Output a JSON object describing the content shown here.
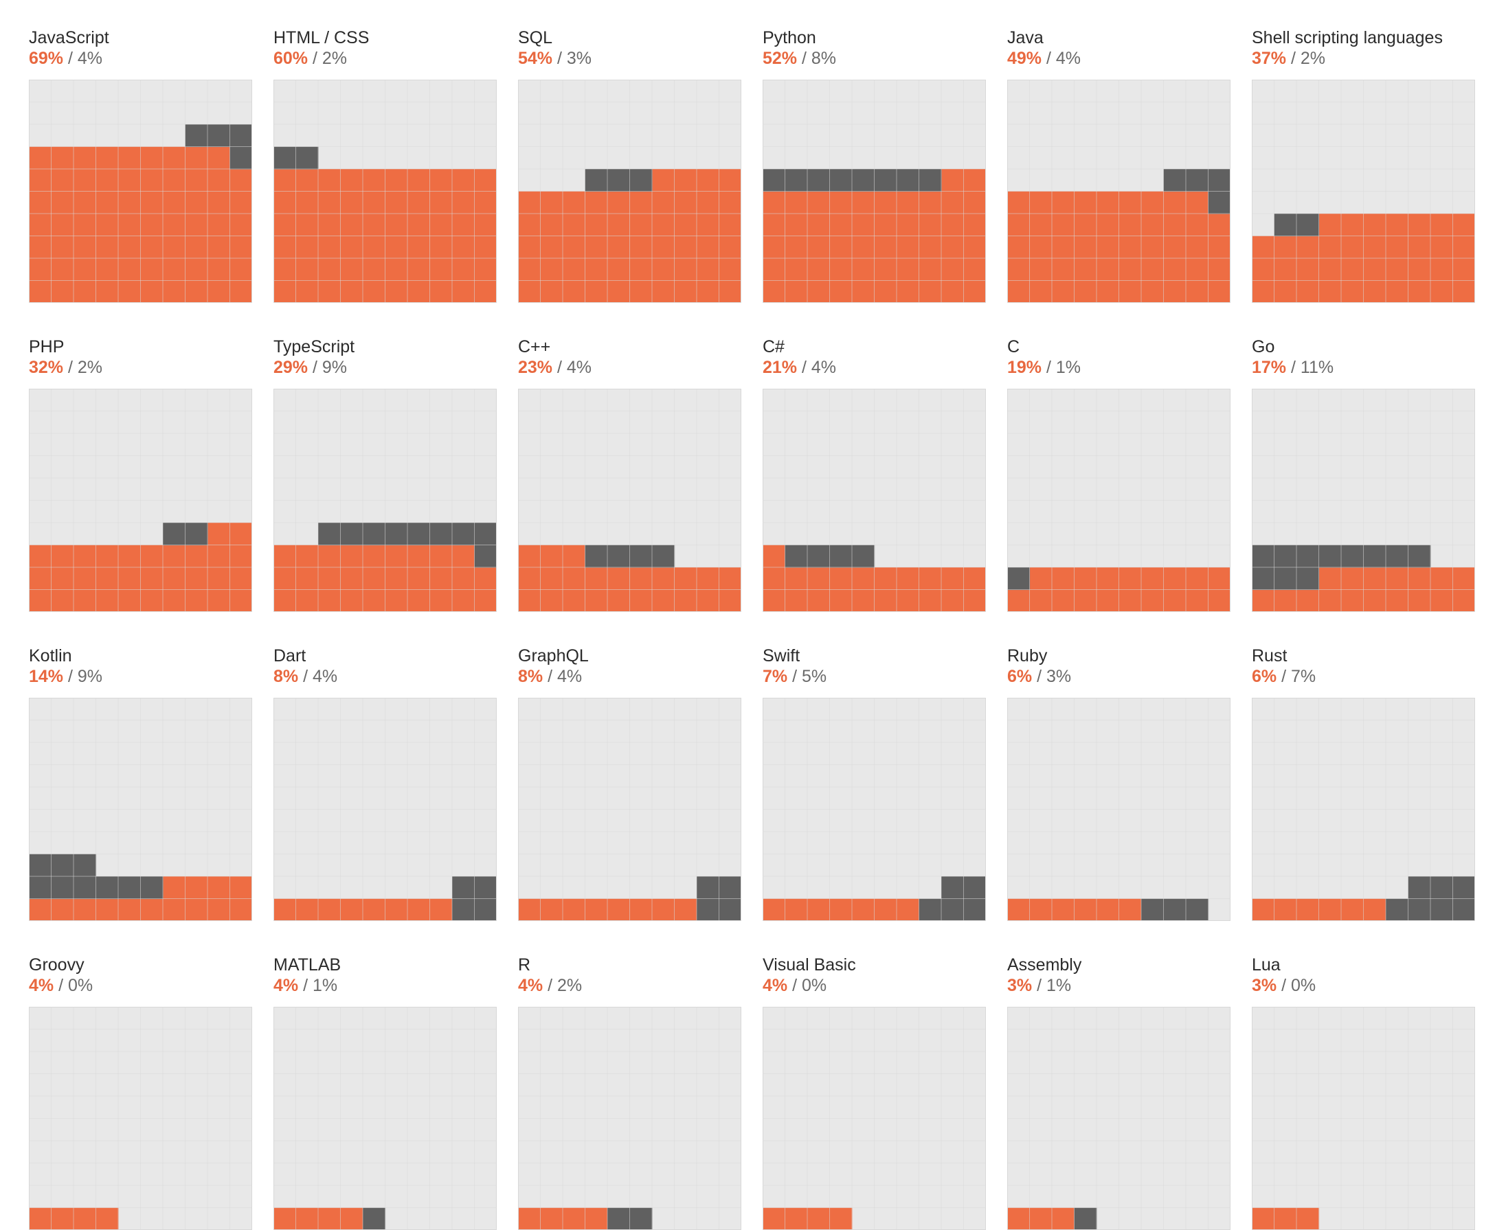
{
  "colors": {
    "primary": "#ee6d43",
    "secondary": "#606060",
    "empty": "#e8e8e8",
    "gridline": "#d8d8d8",
    "primary_text": "#e8683f",
    "label_text": "#2b2b2b",
    "muted_text": "#6a6a6a"
  },
  "separator": "/",
  "chart_data": {
    "type": "waffle",
    "grid": [
      10,
      10
    ],
    "series": [
      {
        "name": "primary"
      },
      {
        "name": "secondary"
      }
    ],
    "items": [
      {
        "name": "JavaScript",
        "primary": 69,
        "secondary": 4,
        "primary_label": "69%",
        "secondary_label": "4%"
      },
      {
        "name": "HTML / CSS",
        "primary": 60,
        "secondary": 2,
        "primary_label": "60%",
        "secondary_label": "2%"
      },
      {
        "name": "SQL",
        "primary": 54,
        "secondary": 3,
        "primary_label": "54%",
        "secondary_label": "3%"
      },
      {
        "name": "Python",
        "primary": 52,
        "secondary": 8,
        "primary_label": "52%",
        "secondary_label": "8%"
      },
      {
        "name": "Java",
        "primary": 49,
        "secondary": 4,
        "primary_label": "49%",
        "secondary_label": "4%"
      },
      {
        "name": "Shell scripting languages",
        "primary": 37,
        "secondary": 2,
        "primary_label": "37%",
        "secondary_label": "2%"
      },
      {
        "name": "PHP",
        "primary": 32,
        "secondary": 2,
        "primary_label": "32%",
        "secondary_label": "2%"
      },
      {
        "name": "TypeScript",
        "primary": 29,
        "secondary": 9,
        "primary_label": "29%",
        "secondary_label": "9%"
      },
      {
        "name": "C++",
        "primary": 23,
        "secondary": 4,
        "primary_label": "23%",
        "secondary_label": "4%"
      },
      {
        "name": "C#",
        "primary": 21,
        "secondary": 4,
        "primary_label": "21%",
        "secondary_label": "4%"
      },
      {
        "name": "C",
        "primary": 19,
        "secondary": 1,
        "primary_label": "19%",
        "secondary_label": "1%"
      },
      {
        "name": "Go",
        "primary": 17,
        "secondary": 11,
        "primary_label": "17%",
        "secondary_label": "11%"
      },
      {
        "name": "Kotlin",
        "primary": 14,
        "secondary": 9,
        "primary_label": "14%",
        "secondary_label": "9%"
      },
      {
        "name": "Dart",
        "primary": 8,
        "secondary": 4,
        "primary_label": "8%",
        "secondary_label": "4%"
      },
      {
        "name": "GraphQL",
        "primary": 8,
        "secondary": 4,
        "primary_label": "8%",
        "secondary_label": "4%"
      },
      {
        "name": "Swift",
        "primary": 7,
        "secondary": 5,
        "primary_label": "7%",
        "secondary_label": "5%"
      },
      {
        "name": "Ruby",
        "primary": 6,
        "secondary": 3,
        "primary_label": "6%",
        "secondary_label": "3%"
      },
      {
        "name": "Rust",
        "primary": 6,
        "secondary": 7,
        "primary_label": "6%",
        "secondary_label": "7%"
      },
      {
        "name": "Groovy",
        "primary": 4,
        "secondary": 0,
        "primary_label": "4%",
        "secondary_label": "0%"
      },
      {
        "name": "MATLAB",
        "primary": 4,
        "secondary": 1,
        "primary_label": "4%",
        "secondary_label": "1%"
      },
      {
        "name": "R",
        "primary": 4,
        "secondary": 2,
        "primary_label": "4%",
        "secondary_label": "2%"
      },
      {
        "name": "Visual Basic",
        "primary": 4,
        "secondary": 0,
        "primary_label": "4%",
        "secondary_label": "0%"
      },
      {
        "name": "Assembly",
        "primary": 3,
        "secondary": 1,
        "primary_label": "3%",
        "secondary_label": "1%"
      },
      {
        "name": "Lua",
        "primary": 3,
        "secondary": 0,
        "primary_label": "3%",
        "secondary_label": "0%"
      }
    ]
  }
}
